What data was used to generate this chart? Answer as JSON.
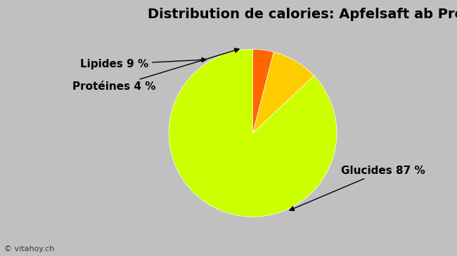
{
  "title": "Distribution de calories: Apfelsaft ab Presse (Migros)",
  "slices": [
    87,
    9,
    4
  ],
  "labels": [
    "Glucides 87 %",
    "Lipides 9 %",
    "Protéines 4 %"
  ],
  "colors": [
    "#ccff00",
    "#ffcc00",
    "#ff6600"
  ],
  "startangle": 90,
  "background_color": "#c0c0c0",
  "title_fontsize": 14,
  "label_fontsize": 11,
  "watermark": "© vitahoy.ch",
  "annotation_arrows": true
}
